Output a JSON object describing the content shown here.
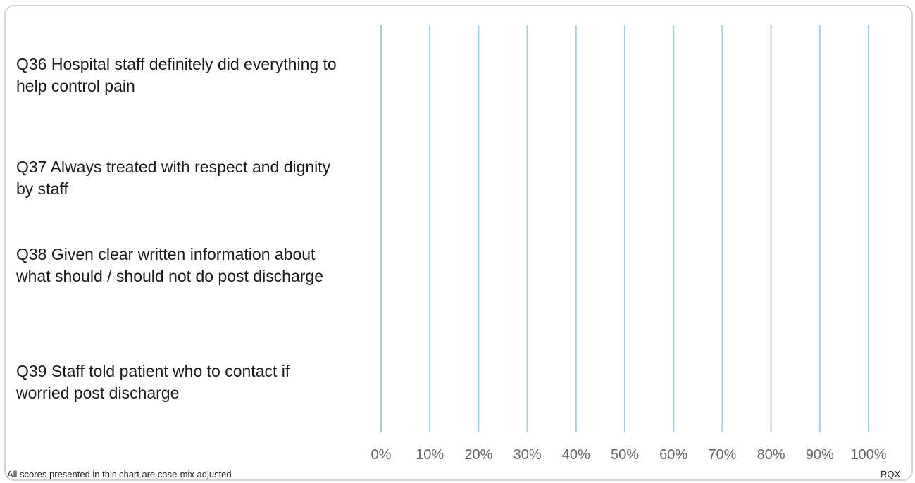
{
  "chart_data": {
    "type": "bar",
    "orientation": "horizontal",
    "categories": [
      "Q36 Hospital staff definitely did everything to help control pain",
      "Q37 Always treated with respect and dignity by staff",
      "Q38 Given clear written information about what should / should not do post discharge",
      "Q39 Staff told patient who to contact if worried post discharge"
    ],
    "values": [
      null,
      null,
      null,
      null
    ],
    "xlim": [
      0,
      100
    ],
    "x_tick_labels": [
      "0%",
      "10%",
      "20%",
      "30%",
      "40%",
      "50%",
      "60%",
      "70%",
      "80%",
      "90%",
      "100%"
    ],
    "grid": true,
    "grid_color": "#a9cde0",
    "text_color": "#1a1a1a",
    "tick_color": "#666666"
  },
  "footnote": "All scores presented in this chart are case-mix adjusted",
  "trust_code": "RQX"
}
